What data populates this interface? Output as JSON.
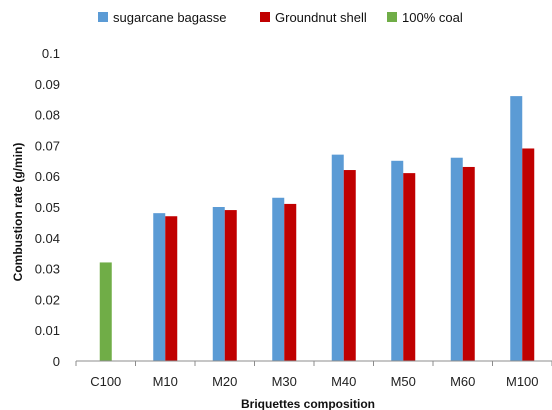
{
  "chart_data": {
    "type": "bar",
    "xlabel": "Briquettes composition",
    "ylabel": "Combustion rate (g/min)",
    "ylim": [
      0,
      0.1
    ],
    "yticks": [
      "0",
      "0.01",
      "0.02",
      "0.03",
      "0.04",
      "0.05",
      "0.06",
      "0.07",
      "0.08",
      "0.09",
      "0.1"
    ],
    "grid": false,
    "legend_position": "top",
    "categories": [
      "C100",
      "M10",
      "M20",
      "M30",
      "M40",
      "M50",
      "M60",
      "M100"
    ],
    "series": [
      {
        "name": "sugarcane bagasse",
        "color": "#5b9bd5",
        "values": [
          null,
          0.048,
          0.05,
          0.053,
          0.067,
          0.065,
          0.066,
          0.086
        ]
      },
      {
        "name": "Groundnut shell",
        "color": "#c00000",
        "values": [
          null,
          0.047,
          0.049,
          0.051,
          0.062,
          0.061,
          0.063,
          0.069
        ]
      },
      {
        "name": "100% coal",
        "color": "#70ad47",
        "values": [
          0.032,
          null,
          null,
          null,
          null,
          null,
          null,
          null
        ]
      }
    ]
  }
}
